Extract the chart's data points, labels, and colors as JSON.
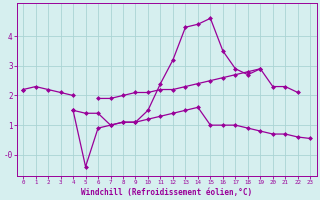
{
  "x": [
    0,
    1,
    2,
    3,
    4,
    5,
    6,
    7,
    8,
    9,
    10,
    11,
    12,
    13,
    14,
    15,
    16,
    17,
    18,
    19,
    20,
    21,
    22,
    23
  ],
  "lineA": [
    2.2,
    2.3,
    2.2,
    2.1,
    2.0,
    null,
    1.9,
    1.9,
    2.0,
    2.1,
    2.1,
    2.2,
    2.2,
    2.3,
    2.4,
    2.5,
    2.6,
    2.7,
    2.8,
    2.9,
    2.3,
    2.3,
    2.1,
    null
  ],
  "lineB": [
    2.2,
    null,
    null,
    null,
    1.5,
    1.4,
    1.4,
    1.0,
    1.1,
    1.1,
    1.5,
    2.4,
    3.2,
    4.3,
    4.4,
    4.6,
    3.5,
    2.9,
    2.7,
    2.9,
    null,
    null,
    null,
    null
  ],
  "lineC": [
    null,
    null,
    null,
    null,
    1.5,
    -0.4,
    0.9,
    1.0,
    1.1,
    1.1,
    1.2,
    1.3,
    1.4,
    1.5,
    1.6,
    1.0,
    1.0,
    1.0,
    0.9,
    0.8,
    0.7,
    0.7,
    0.6,
    0.55
  ],
  "bg_color": "#d6efef",
  "line_color": "#990099",
  "grid_color": "#aad4d4",
  "xlabel": "Windchill (Refroidissement éolien,°C)",
  "xlabel_color": "#990099",
  "tick_color": "#990099",
  "ylim": [
    -0.7,
    5.1
  ],
  "xlim": [
    -0.5,
    23.5
  ],
  "yticks": [
    0,
    1,
    2,
    3,
    4
  ],
  "ytick_labels": [
    "-0",
    "1",
    "2",
    "3",
    "4"
  ],
  "xticks": [
    0,
    1,
    2,
    3,
    4,
    5,
    6,
    7,
    8,
    9,
    10,
    11,
    12,
    13,
    14,
    15,
    16,
    17,
    18,
    19,
    20,
    21,
    22,
    23
  ]
}
